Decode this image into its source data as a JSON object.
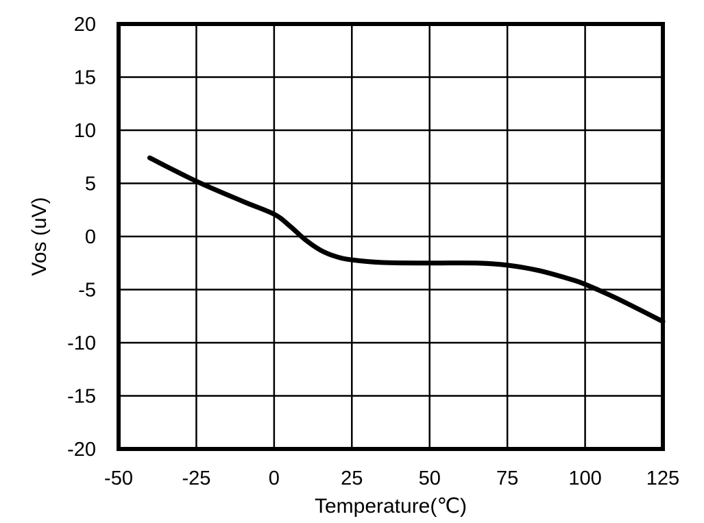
{
  "chart_data": {
    "type": "line",
    "title": "",
    "xlabel": "Temperature(℃)",
    "ylabel": "Vos (uV)",
    "xlim": [
      -50,
      125
    ],
    "ylim": [
      -20,
      20
    ],
    "xticks": [
      -50,
      -25,
      0,
      25,
      50,
      75,
      100,
      125
    ],
    "yticks": [
      20,
      15,
      10,
      5,
      0,
      -5,
      -10,
      -15,
      -20
    ],
    "xtick_labels": [
      "-50",
      "-25",
      "0",
      "25",
      "50",
      "75",
      "100",
      "125"
    ],
    "ytick_labels": [
      "20",
      "15",
      "10",
      "5",
      "0",
      "-5",
      "-10",
      "-15",
      "-20"
    ],
    "grid": true,
    "legend": null,
    "series": [
      {
        "name": "Vos",
        "color": "#000000",
        "x": [
          -40,
          -25,
          -10,
          0,
          5,
          10,
          15,
          20,
          25,
          35,
          50,
          65,
          75,
          85,
          95,
          100,
          110,
          125
        ],
        "values": [
          7.4,
          5.2,
          3.3,
          2.1,
          1.0,
          -0.3,
          -1.3,
          -1.9,
          -2.2,
          -2.45,
          -2.5,
          -2.5,
          -2.7,
          -3.2,
          -4.0,
          -4.5,
          -5.8,
          -8.0
        ]
      }
    ]
  }
}
